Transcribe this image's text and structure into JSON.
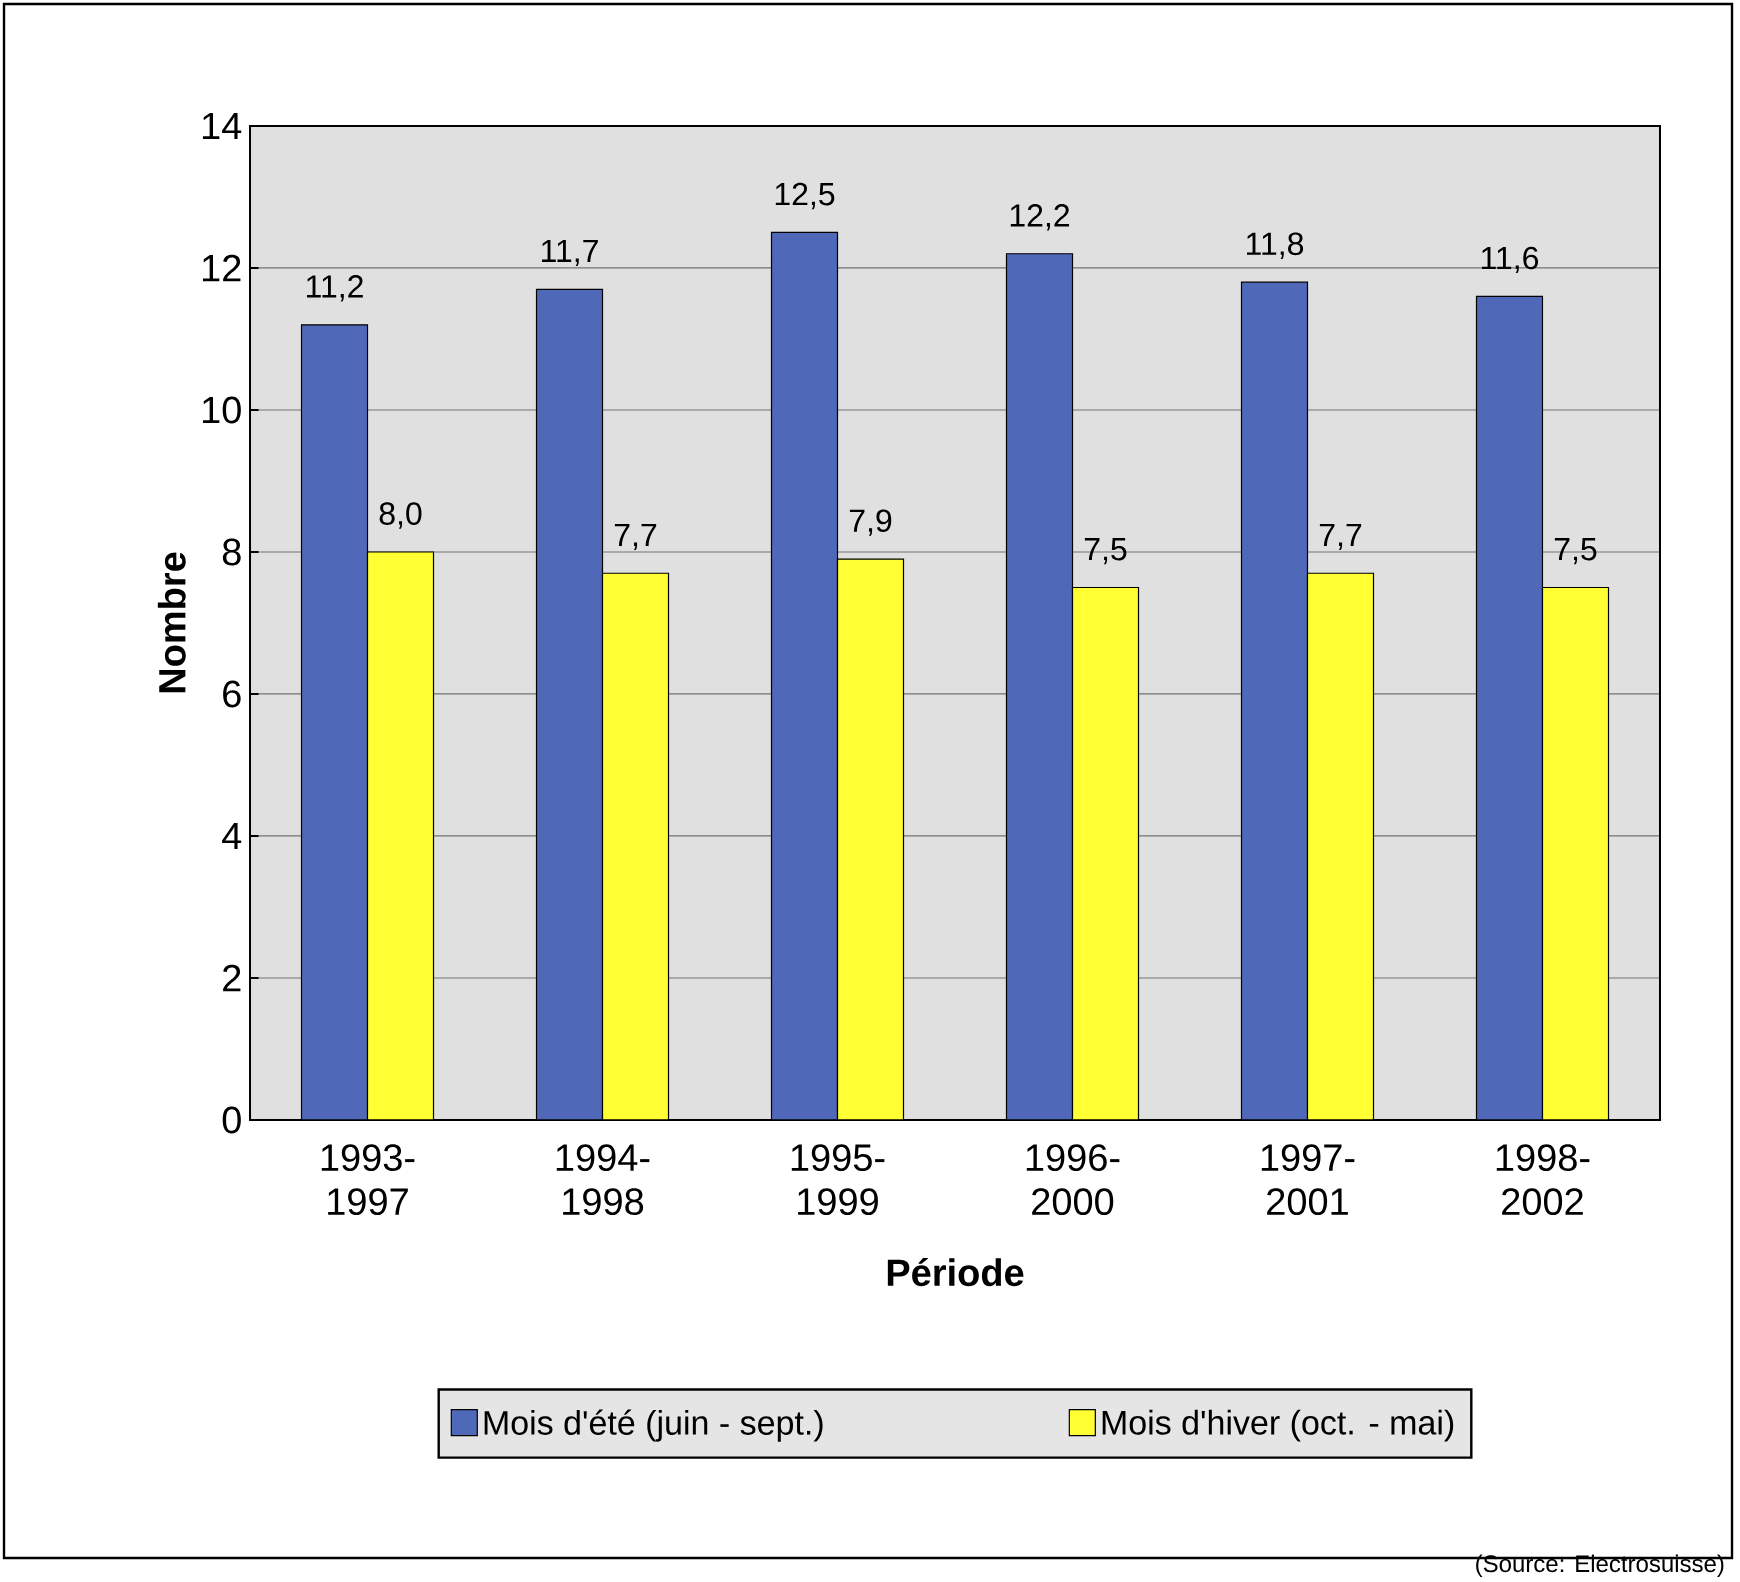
{
  "chart_data": {
    "type": "bar",
    "xlabel": "Période",
    "ylabel": "Nombre",
    "categories": [
      "1993-1997",
      "1994-1998",
      "1995-1999",
      "1996-2000",
      "1997-2001",
      "1998-2002"
    ],
    "series": [
      {
        "name": "Mois d'été (juin - sept.)",
        "color": "#5068b8",
        "values": [
          11.2,
          11.7,
          12.5,
          12.2,
          11.8,
          11.6
        ],
        "value_labels": [
          "11,2",
          "11,7",
          "12,5",
          "12,2",
          "11,8",
          "11,6"
        ]
      },
      {
        "name": "Mois d'hiver (oct. - mai)",
        "color": "#ffff33",
        "values": [
          8.0,
          7.7,
          7.9,
          7.5,
          7.7,
          7.5
        ],
        "value_labels": [
          "8,0",
          "7,7",
          "7,9",
          "7,5",
          "7,7",
          "7,5"
        ]
      }
    ],
    "ylim": [
      0,
      14
    ],
    "yticks": [
      0,
      2,
      4,
      6,
      8,
      10,
      12,
      14
    ],
    "grid": "y",
    "legend": "bottom",
    "annotations": [
      "(Source: Electrosuisse)"
    ]
  }
}
